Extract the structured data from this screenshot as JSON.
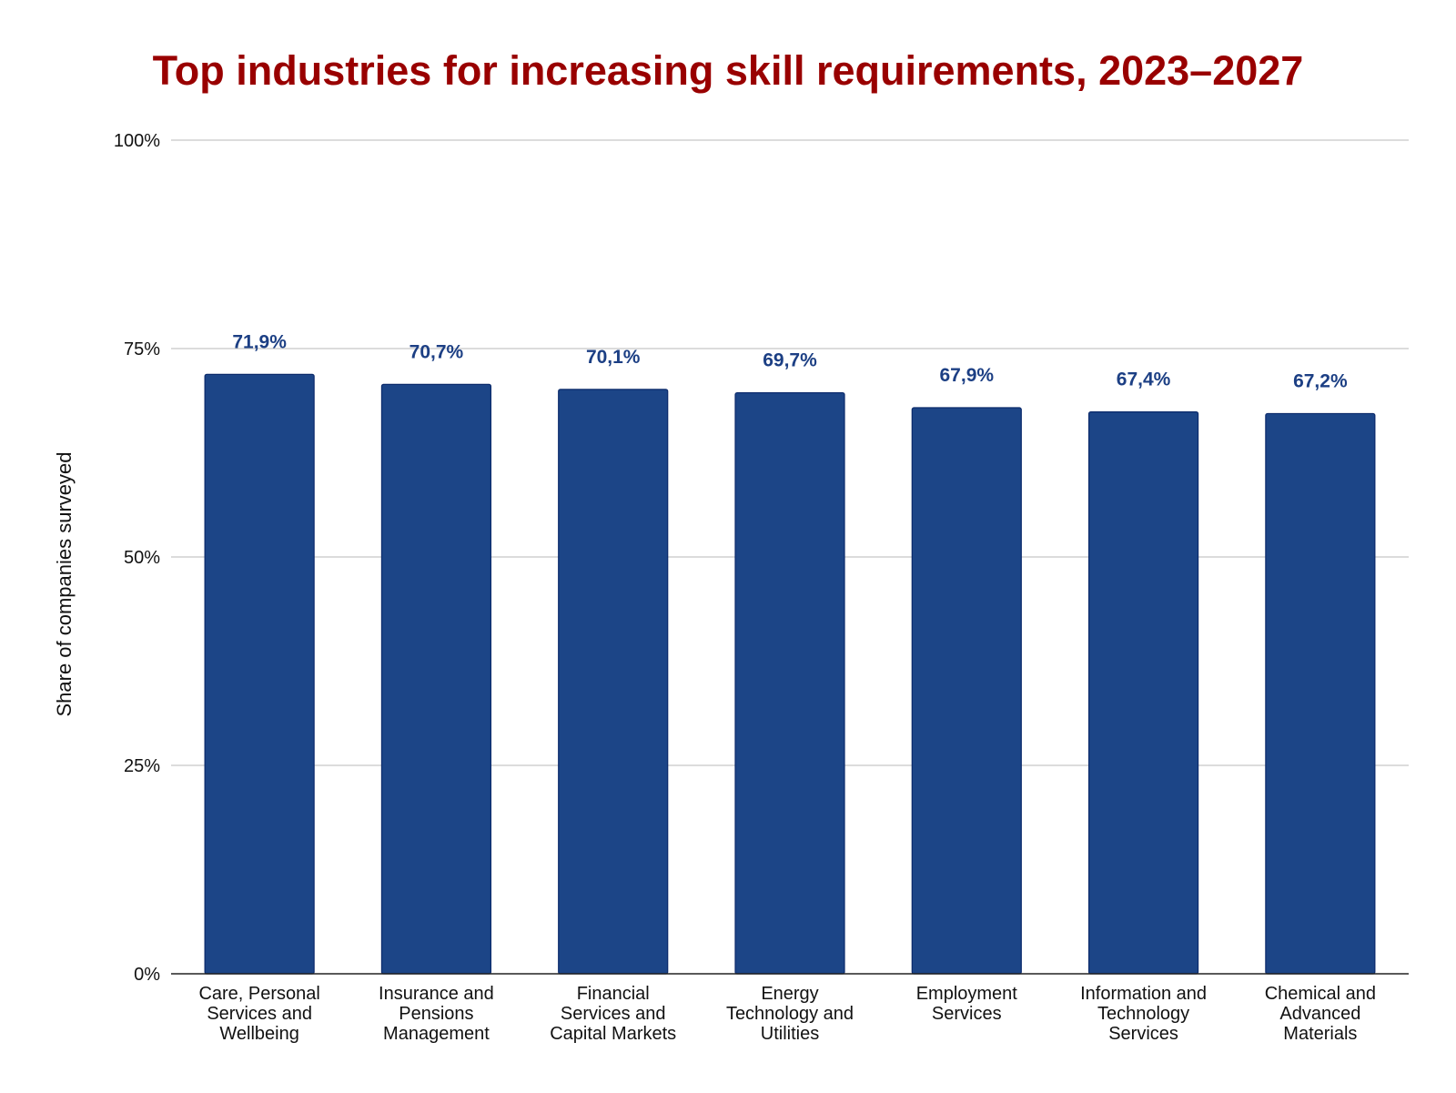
{
  "chart_data": {
    "type": "bar",
    "title": "Top industries for increasing skill requirements, 2023–2027",
    "xlabel": "",
    "ylabel": "Share of companies surveyed",
    "ylim": [
      0,
      100
    ],
    "yticks": [
      0,
      25,
      50,
      75,
      100
    ],
    "ytick_labels": [
      "0%",
      "25%",
      "50%",
      "75%",
      "100%"
    ],
    "grid": true,
    "legend": "none",
    "categories": [
      [
        "Care, Personal",
        "Services and",
        "Wellbeing"
      ],
      [
        "Insurance and",
        "Pensions",
        "Management"
      ],
      [
        "Financial",
        "Services and",
        "Capital Markets"
      ],
      [
        "Energy",
        "Technology and",
        "Utilities"
      ],
      [
        "Employment",
        "Services"
      ],
      [
        "Information and",
        "Technology",
        "Services"
      ],
      [
        "Chemical and",
        "Advanced",
        "Materials"
      ]
    ],
    "values": [
      71.9,
      70.7,
      70.1,
      69.7,
      67.9,
      67.4,
      67.2
    ],
    "value_labels": [
      "71,9%",
      "70,7%",
      "70,1%",
      "69,7%",
      "67,9%",
      "67,4%",
      "67,2%"
    ],
    "colors": {
      "bar": "#1c4587",
      "bar_border": "#0b2a6b",
      "data_label": "#1c3f84",
      "title": "#990000",
      "grid": "#c8c8c8",
      "axis": "#222222"
    }
  }
}
